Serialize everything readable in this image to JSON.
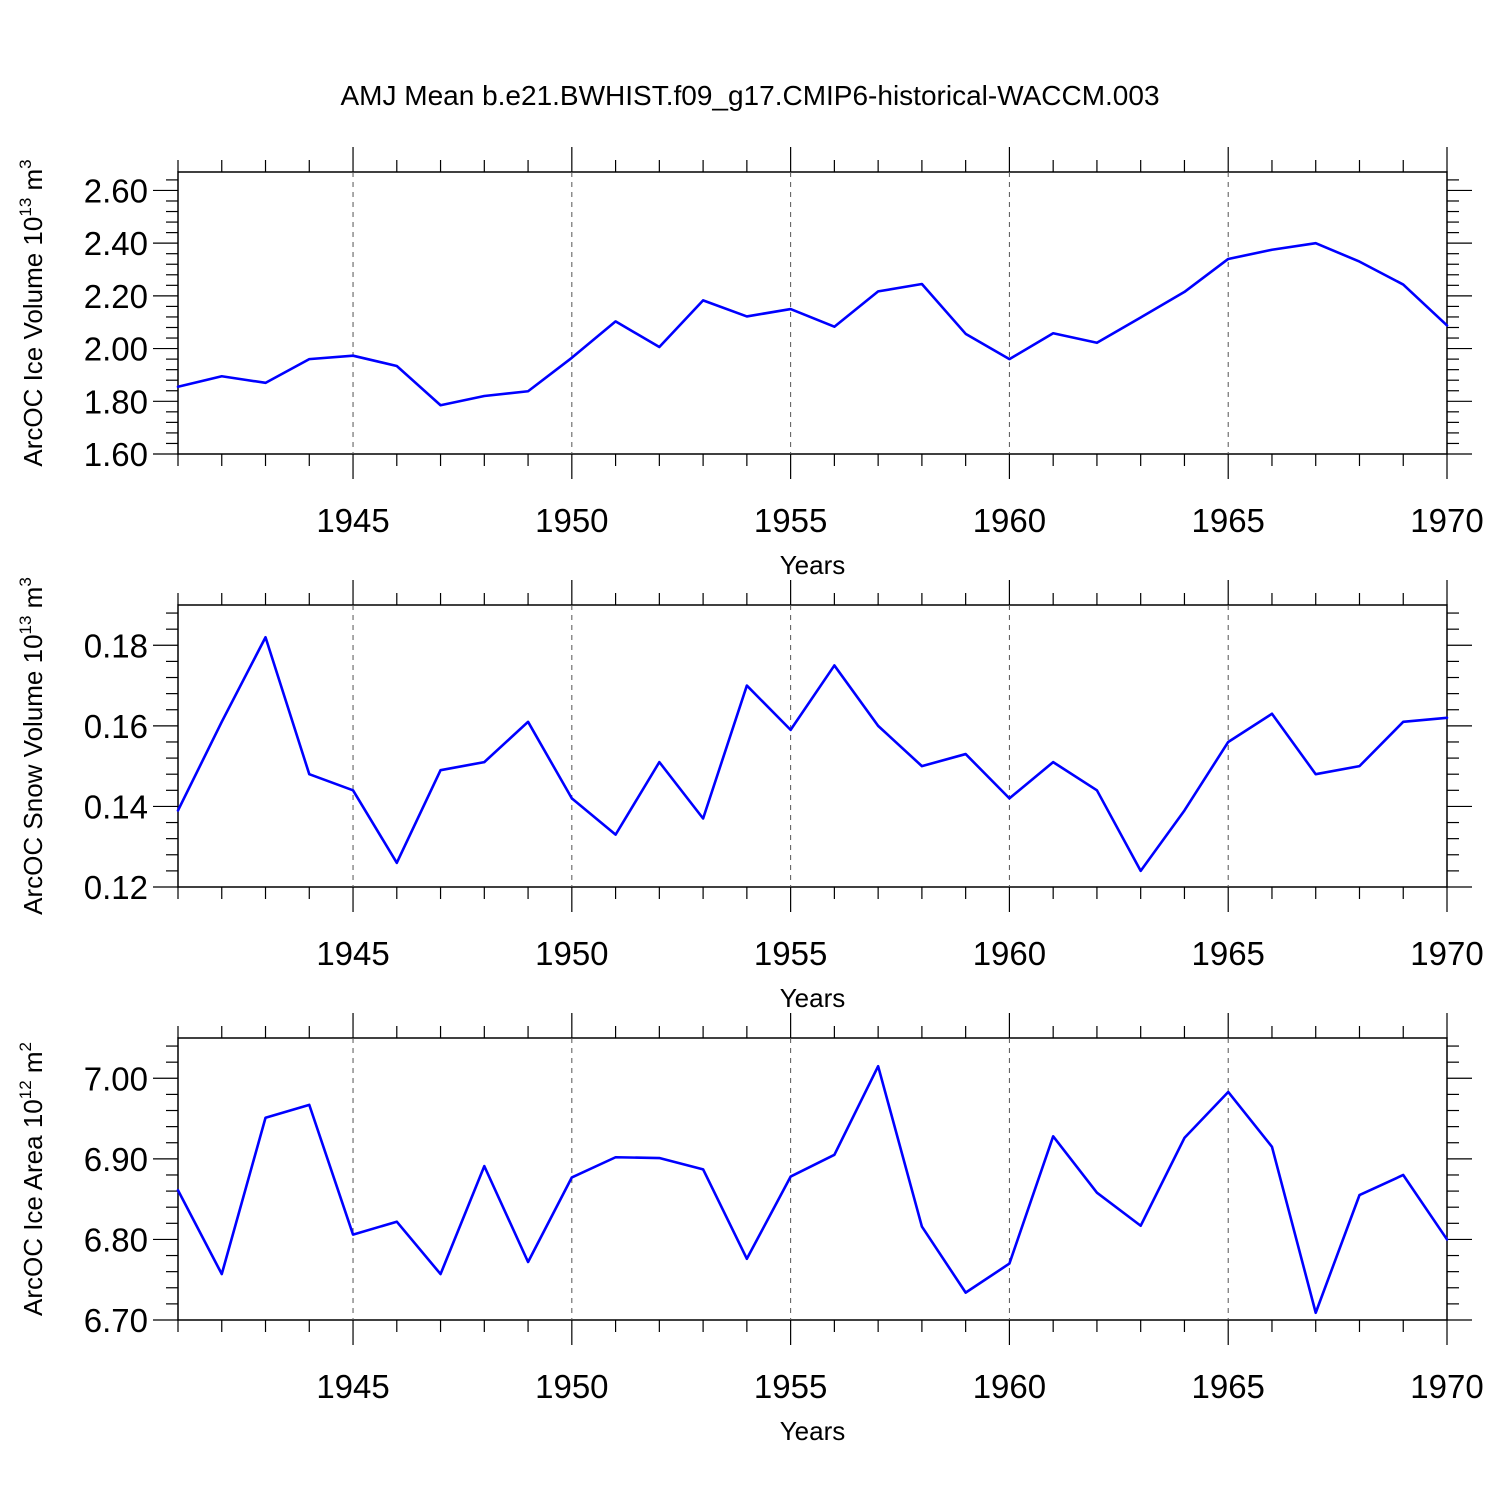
{
  "figure_title": "AMJ Mean b.e21.BWHIST.f09_g17.CMIP6-historical-WACCM.003",
  "line_color": "#0000ff",
  "chart_data": [
    {
      "type": "line",
      "title": "",
      "ylabel": "ArcOC Ice Volume 10",
      "ylabel_power": "13",
      "ylabel_unit": " m",
      "ylabel_unit_power": "3",
      "xlabel": "Years",
      "xlim": [
        1941,
        1970
      ],
      "ylim": [
        1.6,
        2.67
      ],
      "yticks": [
        1.6,
        1.8,
        2.0,
        2.2,
        2.4,
        2.6
      ],
      "ytick_labels": [
        "1.60",
        "1.80",
        "2.00",
        "2.20",
        "2.40",
        "2.60"
      ],
      "yminor_step": 0.04,
      "xticks": [
        1945,
        1950,
        1955,
        1960,
        1965,
        1970
      ],
      "xtick_labels": [
        "1945",
        "1950",
        "1955",
        "1960",
        "1965",
        "1970"
      ],
      "grid": "x-dashed",
      "x": [
        1941,
        1942,
        1943,
        1944,
        1945,
        1946,
        1947,
        1948,
        1949,
        1950,
        1951,
        1952,
        1953,
        1954,
        1955,
        1956,
        1957,
        1958,
        1959,
        1960,
        1961,
        1962,
        1963,
        1964,
        1965,
        1966,
        1967,
        1968,
        1969,
        1970
      ],
      "series": [
        {
          "name": "Ice Volume",
          "values": [
            1.855,
            1.895,
            1.87,
            1.96,
            1.973,
            1.934,
            1.785,
            1.82,
            1.838,
            1.965,
            2.103,
            2.006,
            2.183,
            2.122,
            2.15,
            2.083,
            2.217,
            2.245,
            2.056,
            1.96,
            2.058,
            2.022,
            2.118,
            2.215,
            2.34,
            2.375,
            2.4,
            2.33,
            2.243,
            2.088
          ]
        }
      ]
    },
    {
      "type": "line",
      "title": "",
      "ylabel": "ArcOC Snow Volume 10",
      "ylabel_power": "13",
      "ylabel_unit": " m",
      "ylabel_unit_power": "3",
      "xlabel": "Years",
      "xlim": [
        1941,
        1970
      ],
      "ylim": [
        0.12,
        0.19
      ],
      "yticks": [
        0.12,
        0.14,
        0.16,
        0.18
      ],
      "ytick_labels": [
        "0.12",
        "0.14",
        "0.16",
        "0.18"
      ],
      "yminor_step": 0.004,
      "xticks": [
        1945,
        1950,
        1955,
        1960,
        1965,
        1970
      ],
      "xtick_labels": [
        "1945",
        "1950",
        "1955",
        "1960",
        "1965",
        "1970"
      ],
      "grid": "x-dashed",
      "x": [
        1941,
        1942,
        1943,
        1944,
        1945,
        1946,
        1947,
        1948,
        1949,
        1950,
        1951,
        1952,
        1953,
        1954,
        1955,
        1956,
        1957,
        1958,
        1959,
        1960,
        1961,
        1962,
        1963,
        1964,
        1965,
        1966,
        1967,
        1968,
        1969,
        1970
      ],
      "series": [
        {
          "name": "Snow Volume",
          "values": [
            0.139,
            0.161,
            0.182,
            0.148,
            0.144,
            0.126,
            0.149,
            0.151,
            0.161,
            0.142,
            0.133,
            0.151,
            0.137,
            0.17,
            0.159,
            0.175,
            0.16,
            0.15,
            0.153,
            0.142,
            0.151,
            0.144,
            0.124,
            0.139,
            0.156,
            0.163,
            0.148,
            0.15,
            0.161,
            0.162
          ]
        }
      ]
    },
    {
      "type": "line",
      "title": "",
      "ylabel": "ArcOC Ice Area 10",
      "ylabel_power": "12",
      "ylabel_unit": " m",
      "ylabel_unit_power": "2",
      "xlabel": "Years",
      "xlim": [
        1941,
        1970
      ],
      "ylim": [
        6.7,
        7.05
      ],
      "yticks": [
        6.7,
        6.8,
        6.9,
        7.0
      ],
      "ytick_labels": [
        "6.70",
        "6.80",
        "6.90",
        "7.00"
      ],
      "yminor_step": 0.02,
      "xticks": [
        1945,
        1950,
        1955,
        1960,
        1965,
        1970
      ],
      "xtick_labels": [
        "1945",
        "1950",
        "1955",
        "1960",
        "1965",
        "1970"
      ],
      "grid": "x-dashed",
      "x": [
        1941,
        1942,
        1943,
        1944,
        1945,
        1946,
        1947,
        1948,
        1949,
        1950,
        1951,
        1952,
        1953,
        1954,
        1955,
        1956,
        1957,
        1958,
        1959,
        1960,
        1961,
        1962,
        1963,
        1964,
        1965,
        1966,
        1967,
        1968,
        1969,
        1970
      ],
      "series": [
        {
          "name": "Ice Area",
          "values": [
            6.861,
            6.757,
            6.951,
            6.967,
            6.806,
            6.822,
            6.757,
            6.891,
            6.772,
            6.877,
            6.902,
            6.901,
            6.887,
            6.776,
            6.878,
            6.905,
            7.015,
            6.816,
            6.734,
            6.77,
            6.928,
            6.858,
            6.817,
            6.926,
            6.983,
            6.915,
            6.709,
            6.855,
            6.88,
            6.8
          ]
        }
      ]
    }
  ]
}
